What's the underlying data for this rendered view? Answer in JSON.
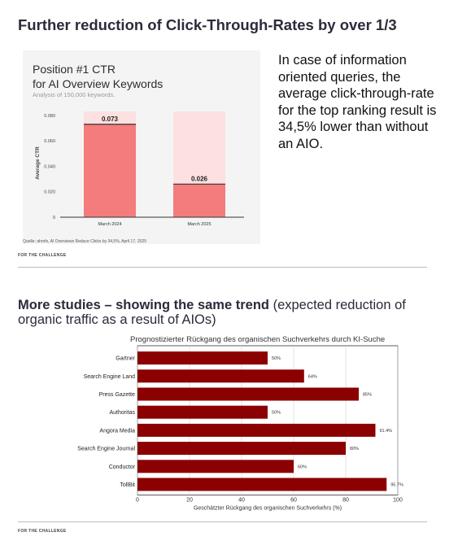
{
  "slide1": {
    "title": "Further reduction of Click-Through-Rates by over 1/3",
    "chart_title_line1": "Position #1 CTR",
    "chart_title_line2": "for AI Overview Keywords",
    "chart_subtitle": "Analysis of 150,000 keywords.",
    "source": "Quelle: ahrefs, AI Overviews Reduce Clicks by 34,5%, April 17, 2025",
    "side_text": "In case of information oriented queries, the average click-through-rate for the top ranking result is 34,5% lower than without an AIO.",
    "footer": "FOR THE CHALLENGE"
  },
  "slide2": {
    "title_bold": "More studies – showing the same trend",
    "title_rest": " (expected reduction of organic traffic as a result of AIOs)",
    "footer": "FOR THE CHALLENGE"
  },
  "colors": {
    "ctr_bar": "#f47c7c",
    "ctr_bar_bg": "#fde0e0",
    "hbar": "#8b0000"
  },
  "chart_data": [
    {
      "type": "bar",
      "title": "Position #1 CTR for AI Overview Keywords",
      "subtitle": "Analysis of 150,000 keywords.",
      "categories": [
        "March 2024",
        "March 2025"
      ],
      "values": [
        0.073,
        0.026
      ],
      "value_labels": [
        "0.073",
        "0.026"
      ],
      "ylabel": "Average CTR",
      "ylim": [
        0,
        0.085
      ],
      "yticks": [
        0,
        0.02,
        0.04,
        0.06,
        0.08
      ],
      "ytick_labels": [
        "0",
        "0.020",
        "0.040",
        "0.060",
        "0.080"
      ],
      "grid": false
    },
    {
      "type": "bar",
      "orientation": "horizontal",
      "title": "Prognostizierter Rückgang des organischen Suchverkehrs durch KI-Suche",
      "categories": [
        "Gartner",
        "Search Engine Land",
        "Press Gazette",
        "Authoritas",
        "Angora Media",
        "Search Engine Journal",
        "Conductor",
        "TollBit"
      ],
      "values": [
        50,
        64,
        85,
        50,
        91.4,
        80,
        60,
        95.7
      ],
      "value_labels": [
        "50%",
        "64%",
        "85%",
        "50%",
        "91.4%",
        "80%",
        "60%",
        "95.7%"
      ],
      "xlabel": "Geschätzter Rückgang des organischen Suchverkehrs (%)",
      "xlim": [
        0,
        100
      ],
      "xticks": [
        0,
        20,
        40,
        60,
        80,
        100
      ],
      "grid": true
    }
  ]
}
